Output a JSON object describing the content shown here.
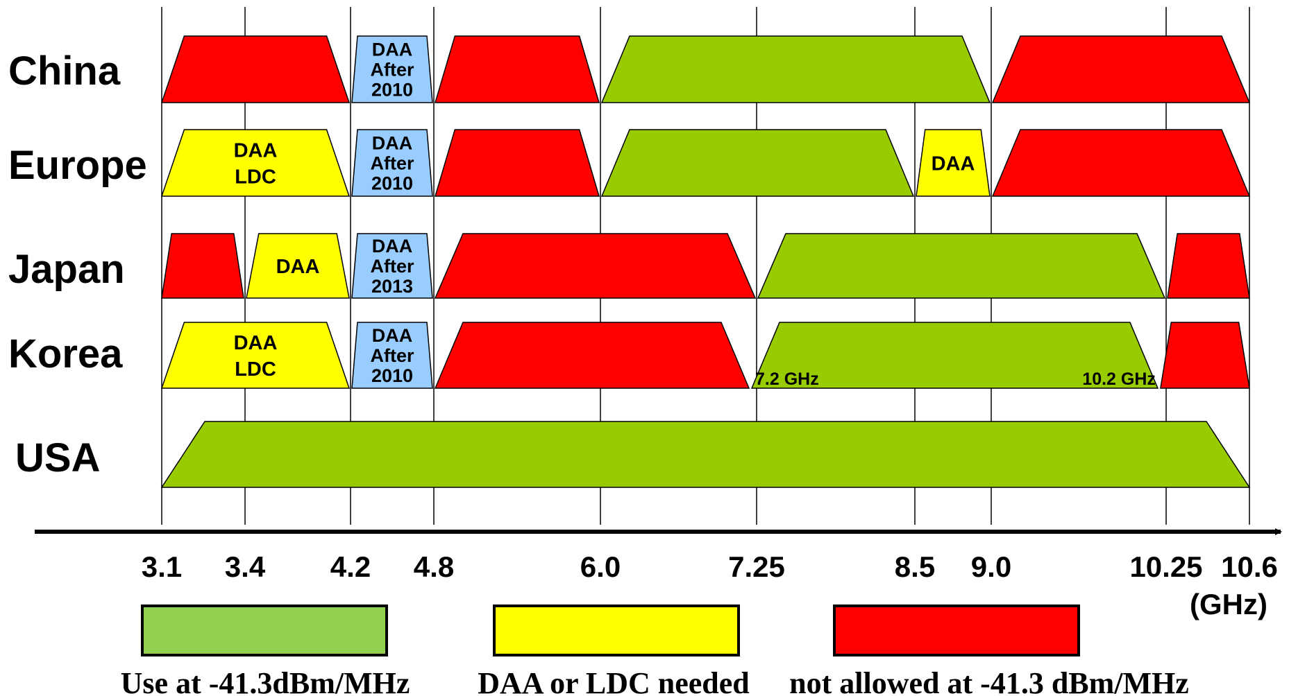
{
  "colors": {
    "green": "#99cc00",
    "red": "#ff0000",
    "yellow": "#ffff00",
    "blue": "#99ccff",
    "legend_green": "#92d050",
    "axis": "#000000",
    "grid": "#000000"
  },
  "axis": {
    "unit_label": "(GHz)",
    "ticks": [
      {
        "label": "3.1",
        "value": 3.1
      },
      {
        "label": "3.4",
        "value": 3.4
      },
      {
        "label": "4.2",
        "value": 4.2
      },
      {
        "label": "4.8",
        "value": 4.8
      },
      {
        "label": "6.0",
        "value": 6.0
      },
      {
        "label": "7.25",
        "value": 7.25
      },
      {
        "label": "8.5",
        "value": 8.5
      },
      {
        "label": "9.0",
        "value": 9.0
      },
      {
        "label": "10.25",
        "value": 10.25
      },
      {
        "label": "10.6",
        "value": 10.6
      }
    ]
  },
  "regions": [
    {
      "name": "China",
      "bands": [
        {
          "status": "not_allowed",
          "from_ghz": 3.1,
          "to_ghz": 4.2,
          "lines": []
        },
        {
          "status": "daa_after",
          "from_ghz": 4.2,
          "to_ghz": 4.8,
          "lines": [
            "DAA",
            "After",
            "2010"
          ]
        },
        {
          "status": "not_allowed",
          "from_ghz": 4.8,
          "to_ghz": 6.0,
          "lines": []
        },
        {
          "status": "use",
          "from_ghz": 6.0,
          "to_ghz": 9.0,
          "lines": []
        },
        {
          "status": "not_allowed",
          "from_ghz": 9.0,
          "to_ghz": 10.6,
          "lines": []
        }
      ]
    },
    {
      "name": "Europe",
      "bands": [
        {
          "status": "daa_ldc",
          "from_ghz": 3.1,
          "to_ghz": 4.2,
          "lines": [
            "DAA",
            "LDC"
          ]
        },
        {
          "status": "daa_after",
          "from_ghz": 4.2,
          "to_ghz": 4.8,
          "lines": [
            "DAA",
            "After",
            "2010"
          ]
        },
        {
          "status": "not_allowed",
          "from_ghz": 4.8,
          "to_ghz": 6.0,
          "lines": []
        },
        {
          "status": "use",
          "from_ghz": 6.0,
          "to_ghz": 8.5,
          "lines": []
        },
        {
          "status": "daa_ldc",
          "from_ghz": 8.5,
          "to_ghz": 9.0,
          "lines": [
            "DAA"
          ]
        },
        {
          "status": "not_allowed",
          "from_ghz": 9.0,
          "to_ghz": 10.6,
          "lines": []
        }
      ]
    },
    {
      "name": "Japan",
      "bands": [
        {
          "status": "not_allowed",
          "from_ghz": 3.1,
          "to_ghz": 3.4,
          "lines": []
        },
        {
          "status": "daa_ldc",
          "from_ghz": 3.4,
          "to_ghz": 4.2,
          "lines": [
            "DAA"
          ]
        },
        {
          "status": "daa_after",
          "from_ghz": 4.2,
          "to_ghz": 4.8,
          "lines": [
            "DAA",
            "After",
            "2013"
          ]
        },
        {
          "status": "not_allowed",
          "from_ghz": 4.8,
          "to_ghz": 7.25,
          "lines": []
        },
        {
          "status": "use",
          "from_ghz": 7.25,
          "to_ghz": 10.25,
          "lines": []
        },
        {
          "status": "not_allowed",
          "from_ghz": 10.25,
          "to_ghz": 10.6,
          "lines": []
        }
      ]
    },
    {
      "name": "Korea",
      "bands": [
        {
          "status": "daa_ldc",
          "from_ghz": 3.1,
          "to_ghz": 4.2,
          "lines": [
            "DAA",
            "LDC"
          ]
        },
        {
          "status": "daa_after",
          "from_ghz": 4.2,
          "to_ghz": 4.8,
          "lines": [
            "DAA",
            "After",
            "2010"
          ]
        },
        {
          "status": "not_allowed",
          "from_ghz": 4.8,
          "to_ghz": 7.2,
          "lines": []
        },
        {
          "status": "use",
          "from_ghz": 7.2,
          "to_ghz": 10.2,
          "lines": [],
          "edge_labels": [
            "7.2 GHz",
            "10.2 GHz"
          ]
        },
        {
          "status": "not_allowed",
          "from_ghz": 10.2,
          "to_ghz": 10.6,
          "lines": []
        }
      ]
    },
    {
      "name": "USA",
      "bands": [
        {
          "status": "use",
          "from_ghz": 3.1,
          "to_ghz": 10.6,
          "lines": []
        }
      ]
    }
  ],
  "legend": [
    {
      "status": "use",
      "label": "Use at -41.3dBm/MHz"
    },
    {
      "status": "daa_ldc",
      "label": "DAA or LDC needed"
    },
    {
      "status": "not_allowed",
      "label": "not allowed at -41.3 dBm/MHz"
    }
  ]
}
